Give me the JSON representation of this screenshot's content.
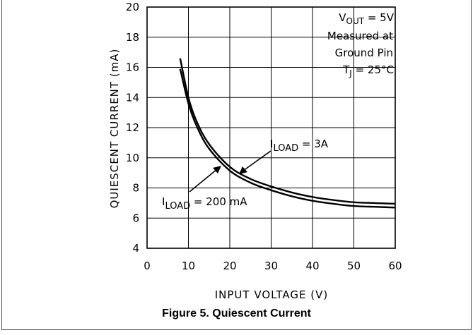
{
  "caption": "Figure 5. Quiescent Current",
  "annotations": {
    "vout": {
      "main": "V",
      "sub": "OUT",
      "rest": " = 5V"
    },
    "measured_line1": "Measured at",
    "measured_line2": "Ground Pin",
    "tj": {
      "main": "T",
      "sub": "J",
      "rest": " = 25°C"
    },
    "iload_3a": {
      "main": "I",
      "sub": "LOAD",
      "rest": " = 3A"
    },
    "iload_200": {
      "main": "I",
      "sub": "LOAD",
      "rest": " = 200 mA"
    }
  },
  "chart_data": {
    "type": "line",
    "title": "",
    "xlabel": "INPUT VOLTAGE (V)",
    "ylabel": "QUIESCENT CURRENT (mA)",
    "xlim": [
      0,
      60
    ],
    "ylim": [
      4,
      20
    ],
    "xticks": [
      0,
      10,
      20,
      30,
      40,
      50,
      60
    ],
    "yticks": [
      4,
      6,
      8,
      10,
      12,
      14,
      16,
      18,
      20
    ],
    "grid": true,
    "series": [
      {
        "name": "I_LOAD = 3A",
        "x": [
          8,
          10,
          12,
          15,
          20,
          25,
          30,
          35,
          40,
          45,
          50,
          55,
          60
        ],
        "y": [
          16.6,
          14.0,
          12.4,
          10.9,
          9.4,
          8.6,
          8.1,
          7.7,
          7.4,
          7.2,
          7.05,
          7.0,
          6.95
        ]
      },
      {
        "name": "I_LOAD = 200 mA",
        "x": [
          8,
          10,
          12,
          15,
          20,
          25,
          30,
          35,
          40,
          45,
          50,
          55,
          60
        ],
        "y": [
          15.9,
          13.6,
          12.1,
          10.6,
          9.15,
          8.35,
          7.85,
          7.45,
          7.15,
          6.95,
          6.8,
          6.75,
          6.7
        ]
      }
    ]
  }
}
